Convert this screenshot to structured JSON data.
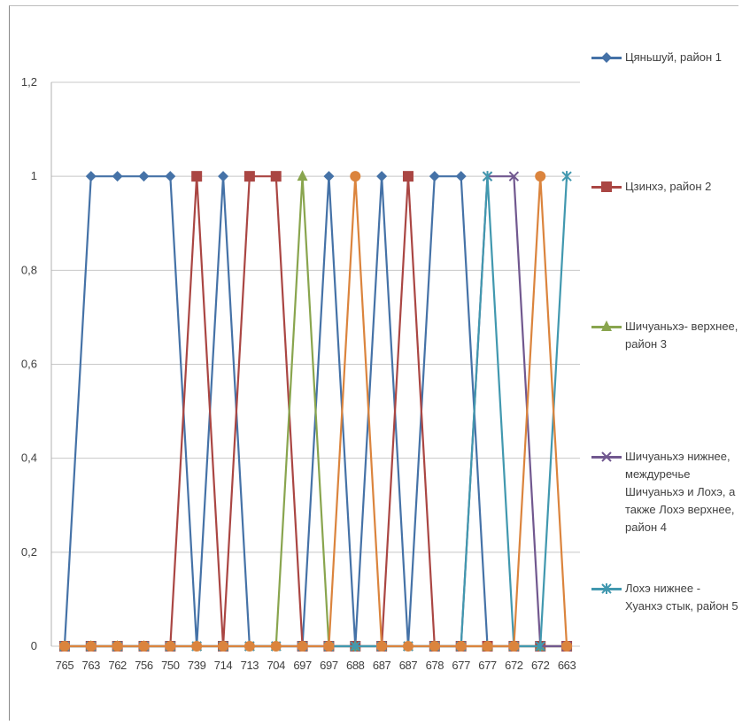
{
  "chart_data": {
    "type": "line",
    "ylim": [
      0,
      1.2
    ],
    "y_ticks": [
      "0",
      "0,2",
      "0,4",
      "0,6",
      "0,8",
      "1",
      "1,2"
    ],
    "grid": true,
    "legend": "right",
    "x_labels": [
      "765",
      "763",
      "762",
      "756",
      "750",
      "739",
      "714",
      "713",
      "704",
      "697",
      "697",
      "688",
      "687",
      "687",
      "678",
      "677",
      "677",
      "672",
      "672",
      "663"
    ],
    "series": [
      {
        "name": "Цяньшуй, район 1",
        "color": "#4572a7",
        "marker": "diamond",
        "values": [
          0,
          1,
          1,
          1,
          1,
          0,
          1,
          0,
          0,
          0,
          1,
          0,
          1,
          0,
          1,
          1,
          0,
          0,
          0,
          0
        ]
      },
      {
        "name": "Цзинхэ, район 2",
        "color": "#aa4643",
        "marker": "square",
        "values": [
          0,
          0,
          0,
          0,
          0,
          1,
          0,
          1,
          1,
          0,
          0,
          0,
          0,
          1,
          0,
          0,
          0,
          0,
          0,
          0
        ]
      },
      {
        "name": "Шичуаньхэ- верхнее, район 3",
        "color": "#89a54e",
        "marker": "triangle",
        "values": [
          0,
          0,
          0,
          0,
          0,
          0,
          0,
          0,
          0,
          1,
          0,
          0,
          0,
          0,
          0,
          0,
          0,
          0,
          0,
          0
        ]
      },
      {
        "name": "Шичуаньхэ нижнее, междуречье Шичуаньхэ и Лохэ, а также Лохэ верхнее, район 4",
        "color": "#71588f",
        "marker": "x",
        "values": [
          0,
          0,
          0,
          0,
          0,
          0,
          0,
          0,
          0,
          0,
          0,
          0,
          0,
          0,
          0,
          0,
          1,
          1,
          0,
          0
        ]
      },
      {
        "name": "Лохэ нижнее - Хуанхэ стык, район 5",
        "color": "#4198af",
        "marker": "star",
        "values": [
          0,
          0,
          0,
          0,
          0,
          0,
          0,
          0,
          0,
          0,
          0,
          0,
          0,
          0,
          0,
          0,
          1,
          0,
          0,
          1
        ]
      },
      {
        "name": "",
        "color": "#db843d",
        "marker": "circle",
        "values": [
          0,
          0,
          0,
          0,
          0,
          0,
          0,
          0,
          0,
          0,
          0,
          1,
          0,
          0,
          0,
          0,
          0,
          0,
          1,
          0
        ]
      }
    ]
  }
}
